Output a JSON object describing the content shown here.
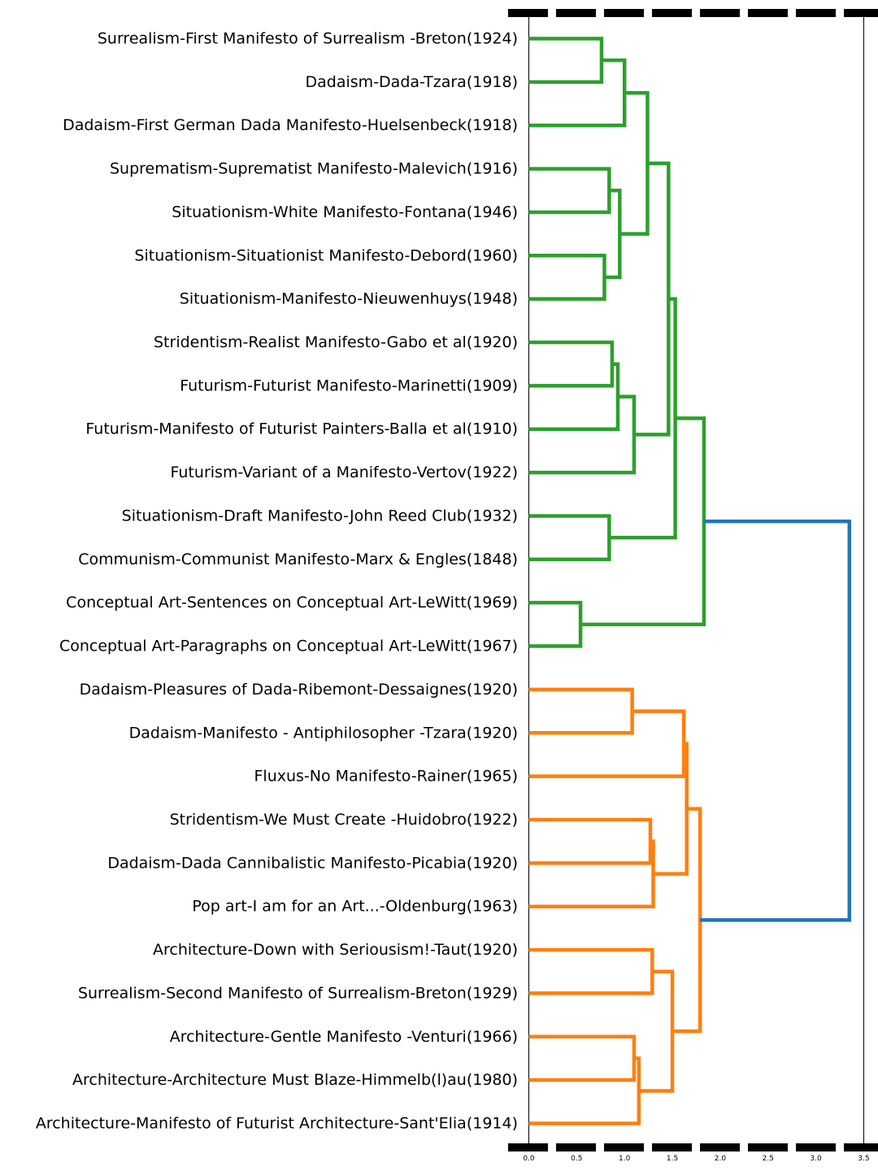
{
  "chart_data": {
    "type": "dendrogram",
    "orientation": "left",
    "x_ticks": [
      "0.0",
      "0.5",
      "1.0",
      "1.5",
      "2.0",
      "2.5",
      "3.0",
      "3.5"
    ],
    "x_tick_values": [
      0.0,
      0.5,
      1.0,
      1.5,
      2.0,
      2.5,
      3.0,
      3.5
    ],
    "xlim": [
      0,
      3.5
    ],
    "colors": {
      "cluster_1": "#2ca02c",
      "cluster_2": "#ff7f0e",
      "root": "#1f77b4"
    },
    "leaves": [
      "Surrealism-First Manifesto of Surrealism -Breton(1924)",
      "Dadaism-Dada-Tzara(1918)",
      "Dadaism-First German Dada Manifesto-Huelsenbeck(1918)",
      "Suprematism-Suprematist Manifesto-Malevich(1916)",
      "Situationism-White Manifesto-Fontana(1946)",
      "Situationism-Situationist Manifesto-Debord(1960)",
      "Situationism-Manifesto-Nieuwenhuys(1948)",
      "Stridentism-Realist Manifesto-Gabo et al(1920)",
      "Futurism-Futurist Manifesto-Marinetti(1909)",
      "Futurism-Manifesto of Futurist Painters-Balla et al(1910)",
      "Futurism-Variant of a Manifesto-Vertov(1922)",
      "Situationism-Draft Manifesto-John Reed Club(1932)",
      "Communism-Communist Manifesto-Marx & Engles(1848)",
      "Conceptual Art-Sentences on Conceptual Art-LeWitt(1969)",
      "Conceptual Art-Paragraphs on Conceptual Art-LeWitt(1967)",
      "Dadaism-Pleasures of Dada-Ribemont-Dessaignes(1920)",
      "Dadaism-Manifesto - Antiphilosopher -Tzara(1920)",
      "Fluxus-No Manifesto-Rainer(1965)",
      "Stridentism-We Must Create -Huidobro(1922)",
      "Dadaism-Dada Cannibalistic Manifesto-Picabia(1920)",
      "Pop art-I am for an Art...-Oldenburg(1963)",
      "Architecture-Down with Seriousism!-Taut(1920)",
      "Surrealism-Second Manifesto of Surrealism-Breton(1929)",
      "Architecture-Gentle Manifesto -Venturi(1966)",
      "Architecture-Architecture Must Blaze-Himmelb(l)au(1980)",
      "Architecture-Manifesto of Futurist Architecture-Sant'Elia(1914)"
    ],
    "merges": [
      {
        "id": "g1",
        "a": "L0",
        "b": "L1",
        "height": 0.76,
        "color": "cluster_1"
      },
      {
        "id": "g2",
        "a": "g1",
        "b": "L2",
        "height": 1.0,
        "color": "cluster_1"
      },
      {
        "id": "g3",
        "a": "L3",
        "b": "L4",
        "height": 0.84,
        "color": "cluster_1"
      },
      {
        "id": "g4",
        "a": "L5",
        "b": "L6",
        "height": 0.79,
        "color": "cluster_1"
      },
      {
        "id": "g5",
        "a": "g3",
        "b": "g4",
        "height": 0.95,
        "color": "cluster_1"
      },
      {
        "id": "g6",
        "a": "g2",
        "b": "g5",
        "height": 1.24,
        "color": "cluster_1"
      },
      {
        "id": "g7",
        "a": "L7",
        "b": "L8",
        "height": 0.87,
        "color": "cluster_1"
      },
      {
        "id": "g8",
        "a": "g7",
        "b": "L9",
        "height": 0.93,
        "color": "cluster_1"
      },
      {
        "id": "g9",
        "a": "g8",
        "b": "L10",
        "height": 1.1,
        "color": "cluster_1"
      },
      {
        "id": "g10",
        "a": "g6",
        "b": "g9",
        "height": 1.46,
        "color": "cluster_1"
      },
      {
        "id": "g11",
        "a": "L11",
        "b": "L12",
        "height": 0.84,
        "color": "cluster_1"
      },
      {
        "id": "g12",
        "a": "g10",
        "b": "g11",
        "height": 1.53,
        "color": "cluster_1"
      },
      {
        "id": "g13",
        "a": "L13",
        "b": "L14",
        "height": 0.54,
        "color": "cluster_1"
      },
      {
        "id": "g14",
        "a": "g12",
        "b": "g13",
        "height": 1.83,
        "color": "cluster_1"
      },
      {
        "id": "o1",
        "a": "L15",
        "b": "L16",
        "height": 1.08,
        "color": "cluster_2"
      },
      {
        "id": "o2",
        "a": "o1",
        "b": "L17",
        "height": 1.62,
        "color": "cluster_2"
      },
      {
        "id": "o3",
        "a": "L18",
        "b": "L19",
        "height": 1.27,
        "color": "cluster_2"
      },
      {
        "id": "o4",
        "a": "o3",
        "b": "L20",
        "height": 1.3,
        "color": "cluster_2"
      },
      {
        "id": "o5",
        "a": "o2",
        "b": "o4",
        "height": 1.65,
        "color": "cluster_2"
      },
      {
        "id": "o6",
        "a": "L21",
        "b": "L22",
        "height": 1.29,
        "color": "cluster_2"
      },
      {
        "id": "o7",
        "a": "L23",
        "b": "L24",
        "height": 1.1,
        "color": "cluster_2"
      },
      {
        "id": "o8",
        "a": "o7",
        "b": "L25",
        "height": 1.15,
        "color": "cluster_2"
      },
      {
        "id": "o9",
        "a": "o6",
        "b": "o8",
        "height": 1.5,
        "color": "cluster_2"
      },
      {
        "id": "o10",
        "a": "o5",
        "b": "o9",
        "height": 1.79,
        "color": "cluster_2"
      },
      {
        "id": "r",
        "a": "g14",
        "b": "o10",
        "height": 3.35,
        "color": "root"
      }
    ]
  }
}
